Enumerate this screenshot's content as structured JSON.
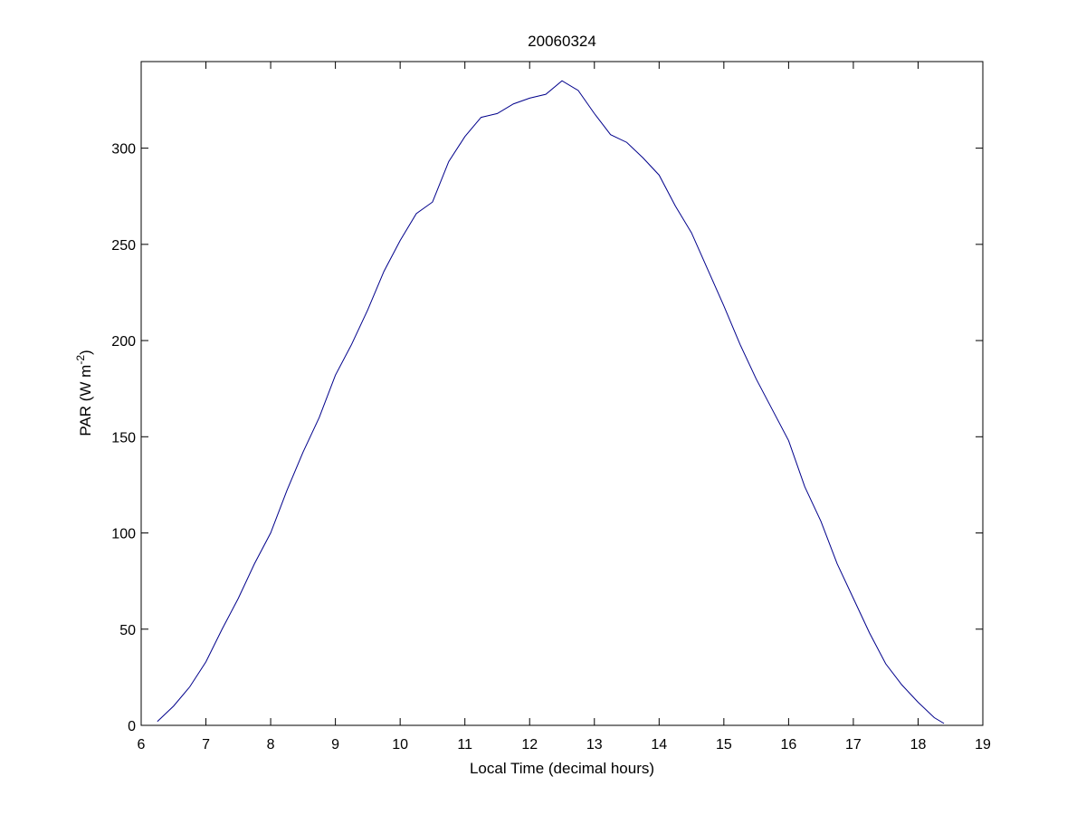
{
  "chart_data": {
    "type": "line",
    "title": "20060324",
    "xlabel": "Local Time (decimal hours)",
    "ylabel": {
      "main": "PAR (W m",
      "superscript": "-2",
      "close": ")"
    },
    "xlim": [
      6,
      19
    ],
    "ylim": [
      0,
      345
    ],
    "xticks": [
      "6",
      "7",
      "8",
      "9",
      "10",
      "11",
      "12",
      "13",
      "14",
      "15",
      "16",
      "17",
      "18",
      "19"
    ],
    "yticks": [
      "0",
      "50",
      "100",
      "150",
      "200",
      "250",
      "300"
    ],
    "grid": false,
    "line_color": "#00008b",
    "series": [
      {
        "x": [
          6.25,
          6.5,
          6.75,
          7.0,
          7.25,
          7.5,
          7.75,
          8.0,
          8.25,
          8.5,
          8.75,
          9.0,
          9.25,
          9.5,
          9.75,
          10.0,
          10.25,
          10.5,
          10.75,
          11.0,
          11.25,
          11.5,
          11.75,
          12.0,
          12.25,
          12.5,
          12.75,
          13.0,
          13.25,
          13.5,
          13.75,
          14.0,
          14.25,
          14.5,
          14.75,
          15.0,
          15.25,
          15.5,
          15.75,
          16.0,
          16.25,
          16.5,
          16.75,
          17.0,
          17.25,
          17.5,
          17.75,
          18.0,
          18.25,
          18.4
        ],
        "y": [
          2,
          10,
          20,
          33,
          50,
          66,
          84,
          100,
          122,
          142,
          160,
          182,
          198,
          216,
          236,
          252,
          266,
          272,
          293,
          306,
          316,
          318,
          323,
          326,
          328,
          335,
          330,
          318,
          307,
          303,
          295,
          286,
          270,
          256,
          237,
          218,
          198,
          180,
          164,
          148,
          124,
          106,
          84,
          66,
          48,
          32,
          21,
          12,
          4,
          1
        ]
      }
    ]
  }
}
